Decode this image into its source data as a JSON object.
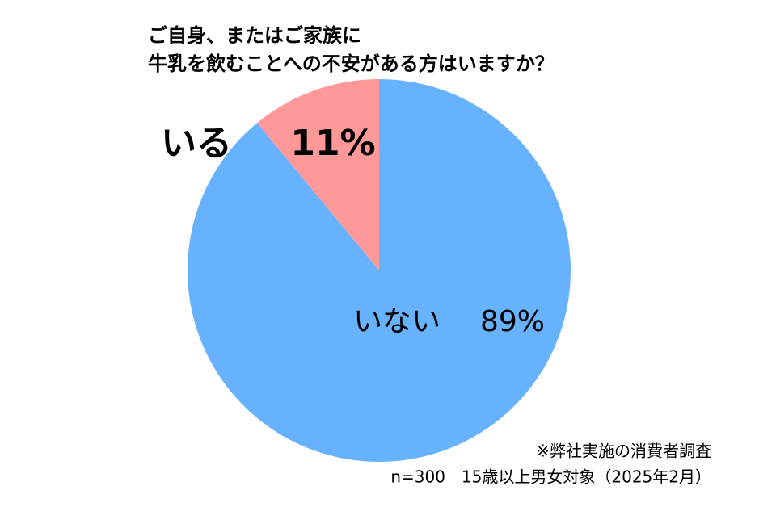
{
  "chart_data": {
    "type": "pie",
    "title": [
      "ご自身、またはご家族に",
      "牛乳を飲むことへの不安がある方はいますか？"
    ],
    "categories": [
      "いる",
      "いない"
    ],
    "values": [
      11,
      89
    ],
    "value_labels": [
      "11%",
      "89%"
    ],
    "colors": [
      "#ff9999",
      "#66b2ff"
    ],
    "notes": [
      "※弊社実施の消費者調査",
      "n=300　15歳以上男女対象（2025年2月）"
    ]
  }
}
